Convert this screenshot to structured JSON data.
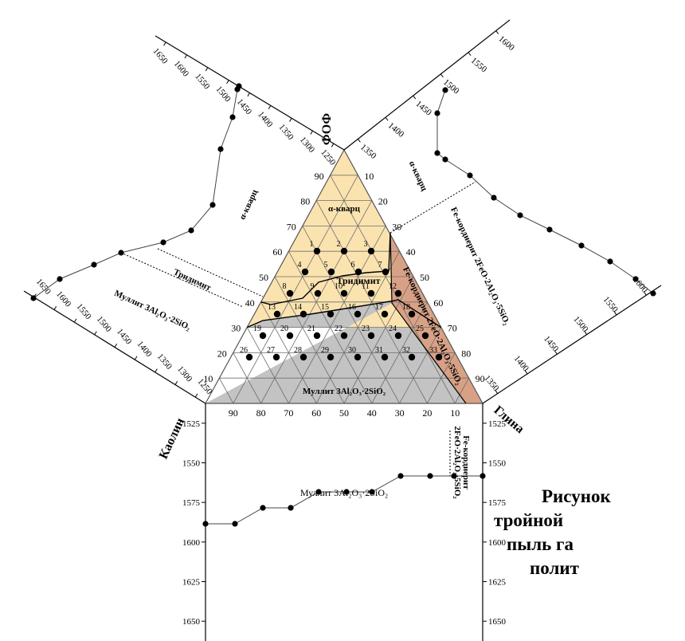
{
  "apex_label": "ФОФ",
  "left_label": "Каолин",
  "right_label": "Глина",
  "fields": {
    "quartz": "α-кварц",
    "tridymite": "Тридимит",
    "mullite": "Муллит 3Al₂O₃·2SiO₂",
    "cordierite_vertical": "Fe-кордиерит 2FeO·2Al₂O₃·5SiO₂",
    "quartz_upper_left": "α-кварц",
    "quartz_upper_right": "α-кварц",
    "tridymite_left": "Тридимит",
    "mullite_left": "Муллит 3Al₂O₃·2SiO₂",
    "cordierite_right": "Fe-кордиерит 2FeO·2Al₂O₃·5SiO₂",
    "mullite_bottom": "Муллит 3Al₂O₃·2SiO₂",
    "cordierite_bottom_l1": "Fe-кордиерит",
    "cordierite_bottom_l2": "2FeO·2Al₂O₃·5SiO₂"
  },
  "left_edge_ticks": [
    "10",
    "20",
    "30",
    "40",
    "50",
    "60",
    "70",
    "80",
    "90"
  ],
  "right_edge_ticks": [
    "10",
    "20",
    "30",
    "40",
    "50",
    "60",
    "70",
    "80",
    "90"
  ],
  "bottom_edge_ticks": [
    "90",
    "80",
    "70",
    "60",
    "50",
    "40",
    "30",
    "20",
    "10"
  ],
  "point_numbers": [
    "1",
    "2",
    "3",
    "4",
    "5",
    "6",
    "7",
    "8",
    "9",
    "10",
    "11",
    "12",
    "13",
    "14",
    "15",
    "16",
    "17",
    "18",
    "19",
    "20",
    "21",
    "22",
    "23",
    "24",
    "25",
    "26",
    "27",
    "28",
    "29",
    "30",
    "31",
    "32",
    "33"
  ],
  "temp_axes": {
    "upper_left": [
      "1650",
      "1600",
      "1550",
      "1500",
      "1450",
      "1400",
      "1350",
      "1300",
      "1250"
    ],
    "upper_right": [
      "1350",
      "1400",
      "1450",
      "1500",
      "1550",
      "1600"
    ],
    "left": [
      "1650",
      "1600",
      "1550",
      "1500",
      "1450",
      "1400",
      "1350",
      "1300",
      "1250"
    ],
    "right": [
      "1350",
      "1400",
      "1450",
      "1500",
      "1550",
      "1600"
    ],
    "bottom_left": [
      "1525",
      "1550",
      "1575",
      "1600",
      "1625",
      "1650"
    ],
    "bottom_right": [
      "1525",
      "1550",
      "1575",
      "1600",
      "1625",
      "1650"
    ]
  },
  "caption": {
    "line1": "Рисунок",
    "line2": "тройной",
    "line3": "пыль га",
    "line4": "полит"
  },
  "colors": {
    "quartz_field": "#fbe3b0",
    "tridymite_field": "#f4d99a",
    "mullite_field": "#c3c3c3",
    "cordierite_field": "#d8a186",
    "grid": "#6e6e6e"
  }
}
